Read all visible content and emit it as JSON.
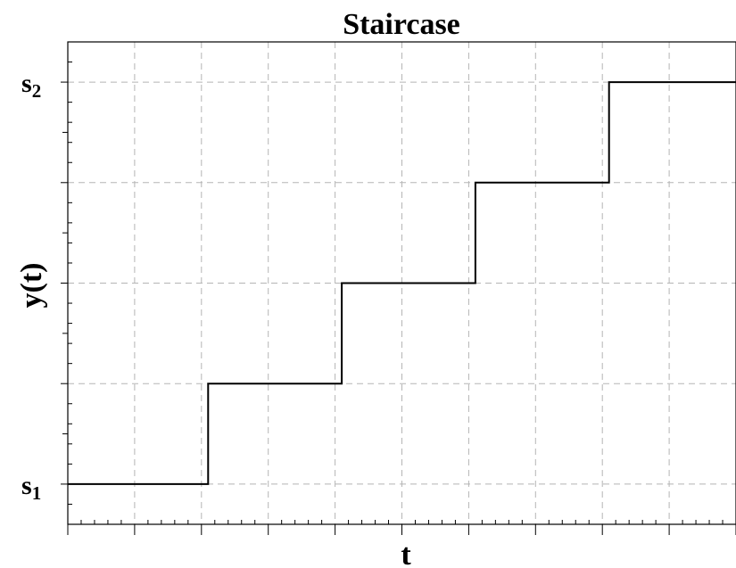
{
  "chart_data": {
    "type": "line",
    "title": "Staircase",
    "xlabel": "t",
    "ylabel": "y(t)",
    "yticks": [
      {
        "value": 0,
        "label": "s",
        "sub": "1"
      },
      {
        "value": 4,
        "label": "s",
        "sub": "2"
      }
    ],
    "xlim": [
      0,
      10
    ],
    "ylim": [
      -0.4,
      4.4
    ],
    "grid": true,
    "step": "post",
    "series": [
      {
        "x": [
          0,
          2.1,
          4.1,
          6.1,
          8.1,
          10
        ],
        "y": [
          0,
          1,
          2,
          3,
          4,
          4
        ]
      }
    ]
  }
}
